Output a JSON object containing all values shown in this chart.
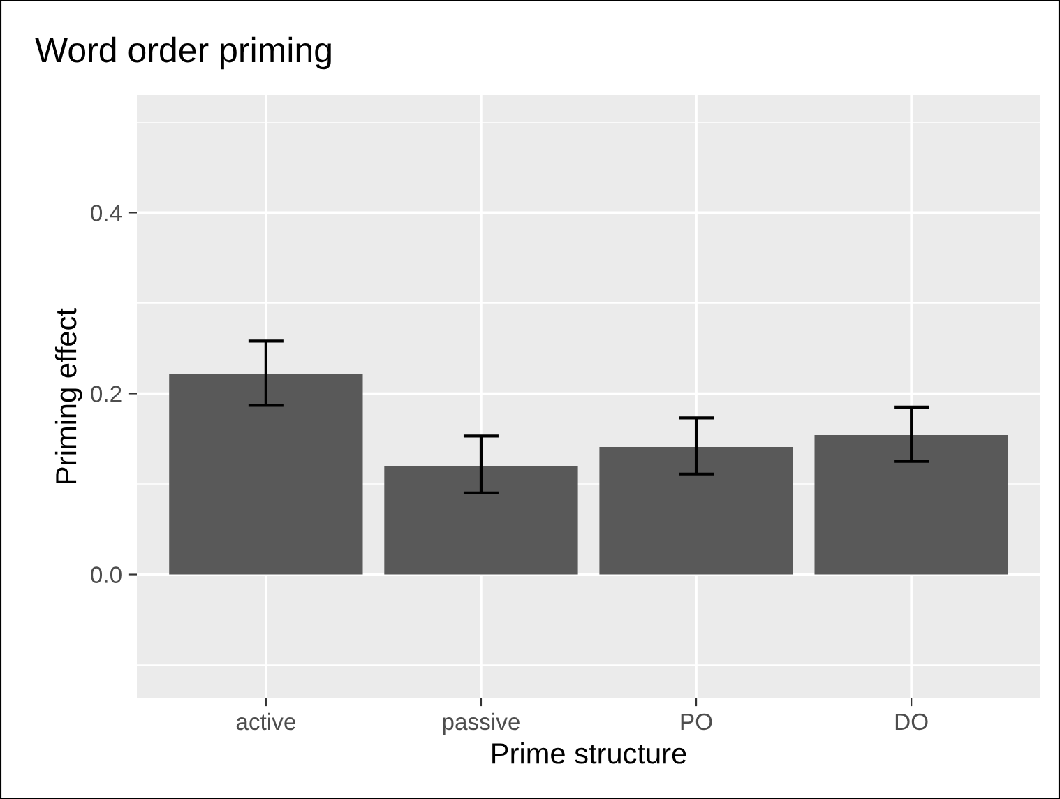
{
  "chart_data": {
    "type": "bar",
    "title": "Word order priming",
    "xlabel": "Prime structure",
    "ylabel": "Priming effect",
    "categories": [
      "active",
      "passive",
      "PO",
      "DO"
    ],
    "values": [
      0.222,
      0.12,
      0.141,
      0.154
    ],
    "errors": [
      [
        0.187,
        0.258
      ],
      [
        0.09,
        0.153
      ],
      [
        0.111,
        0.173
      ],
      [
        0.125,
        0.185
      ]
    ],
    "color": "#595959",
    "ylim": [
      -0.137,
      0.53
    ],
    "yticks": [
      {
        "value": -0.1,
        "label": null
      },
      {
        "value": 0,
        "label": "0.0"
      },
      {
        "value": 0.1,
        "label": null
      },
      0.2,
      {
        "value": 0.3,
        "label": null
      },
      0.4,
      {
        "value": 0.5,
        "label": null
      }
    ],
    "grid": true
  }
}
